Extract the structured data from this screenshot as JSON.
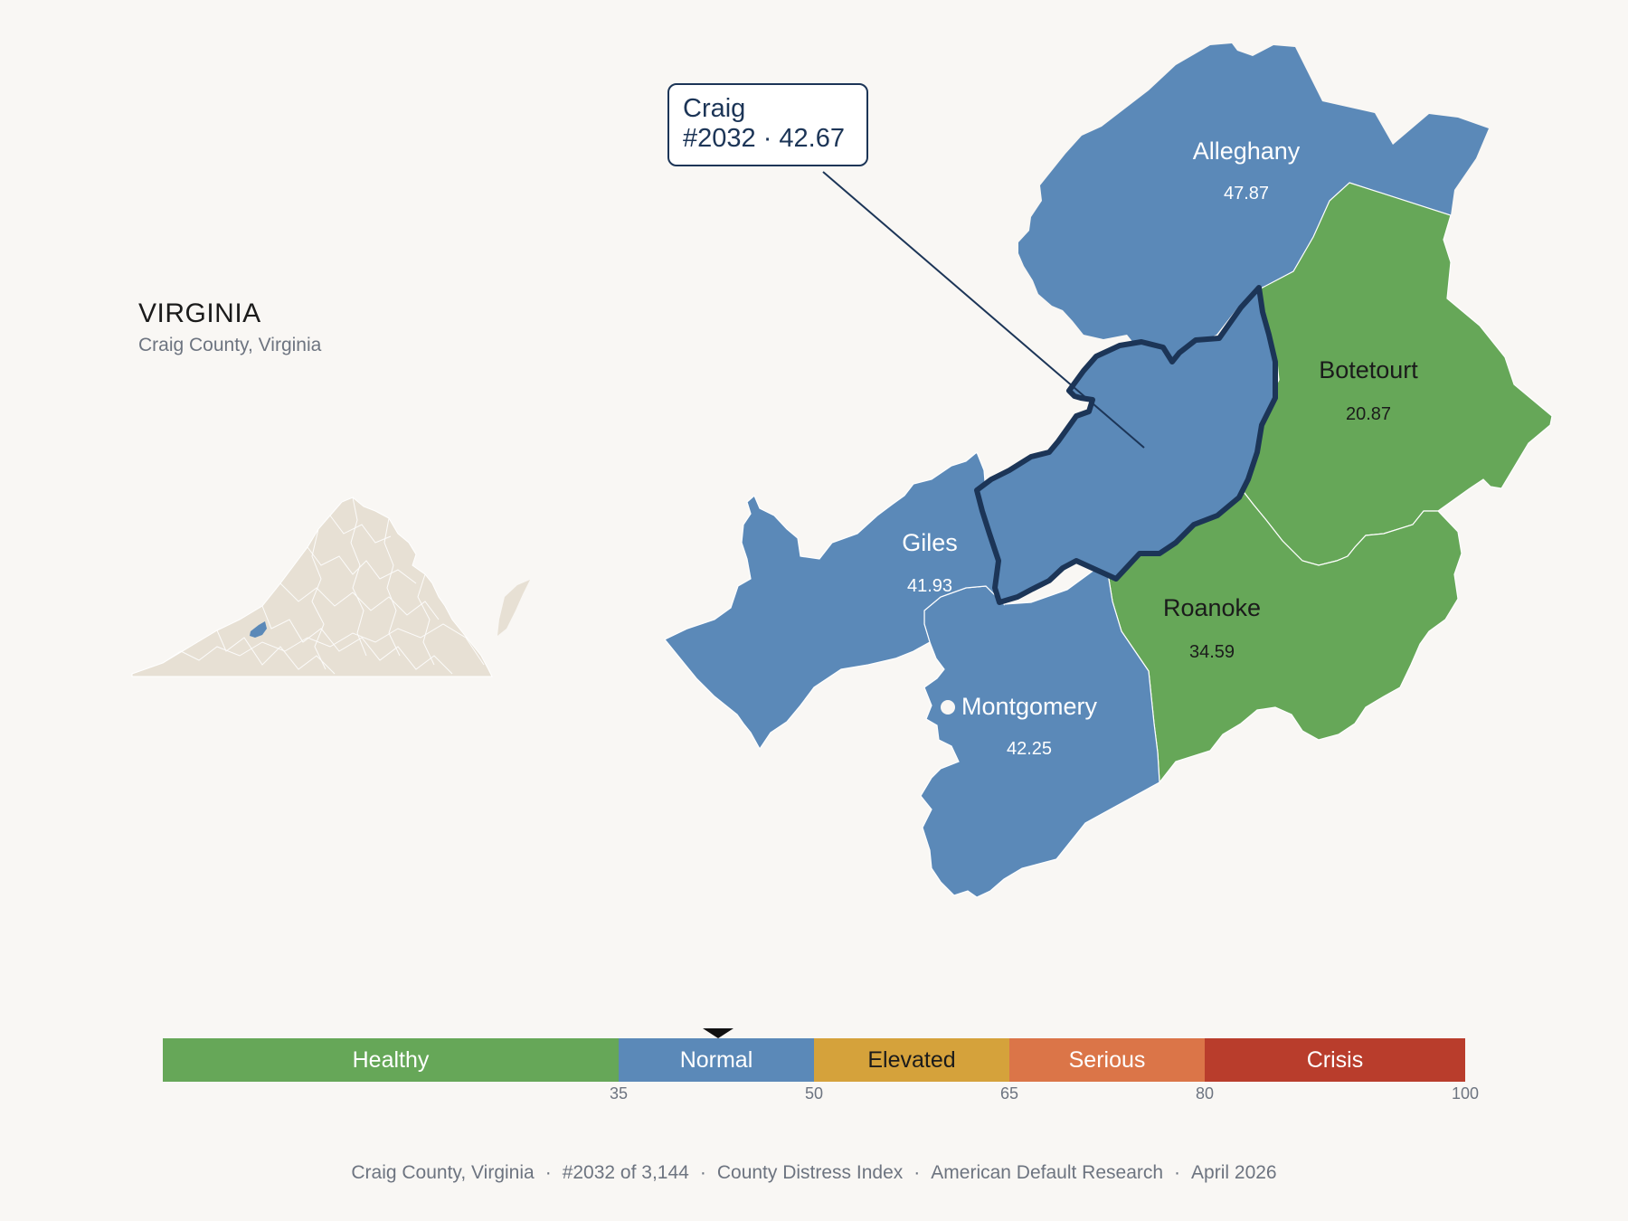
{
  "state": {
    "title": "VIRGINIA",
    "subtitle": "Craig County, Virginia"
  },
  "callout": {
    "name": "Craig",
    "rank_score": "#2032 · 42.67"
  },
  "counties": [
    {
      "name": "Alleghany",
      "value": "47.87",
      "category": "Normal"
    },
    {
      "name": "Botetourt",
      "value": "20.87",
      "category": "Healthy"
    },
    {
      "name": "Giles",
      "value": "41.93",
      "category": "Normal"
    },
    {
      "name": "Roanoke",
      "value": "34.59",
      "category": "Healthy"
    },
    {
      "name": "Montgomery",
      "value": "42.25",
      "category": "Normal"
    },
    {
      "name": "Craig",
      "value": "42.67",
      "category": "Normal",
      "highlighted": true
    }
  ],
  "scale": {
    "segments": [
      {
        "label": "Healthy",
        "from": 0,
        "to": 35,
        "color": "#66a758"
      },
      {
        "label": "Normal",
        "from": 35,
        "to": 50,
        "color": "#5b89b8"
      },
      {
        "label": "Elevated",
        "from": 50,
        "to": 65,
        "color": "#d5a23b"
      },
      {
        "label": "Serious",
        "from": 65,
        "to": 80,
        "color": "#db7548"
      },
      {
        "label": "Crisis",
        "from": 80,
        "to": 100,
        "color": "#b93d2c"
      }
    ],
    "ticks": [
      "35",
      "50",
      "65",
      "80",
      "100"
    ],
    "marker_value": 42.67
  },
  "footer": {
    "location": "Craig County, Virginia",
    "rank": "#2032 of 3,144",
    "index_name": "County Distress Index",
    "source": "American Default Research",
    "date": "April 2026",
    "separator": "·"
  },
  "colors": {
    "normal": "#5b89b8",
    "healthy": "#66a758",
    "highlight_outline": "#1c3557",
    "inset_fill": "#e7e0d4"
  }
}
